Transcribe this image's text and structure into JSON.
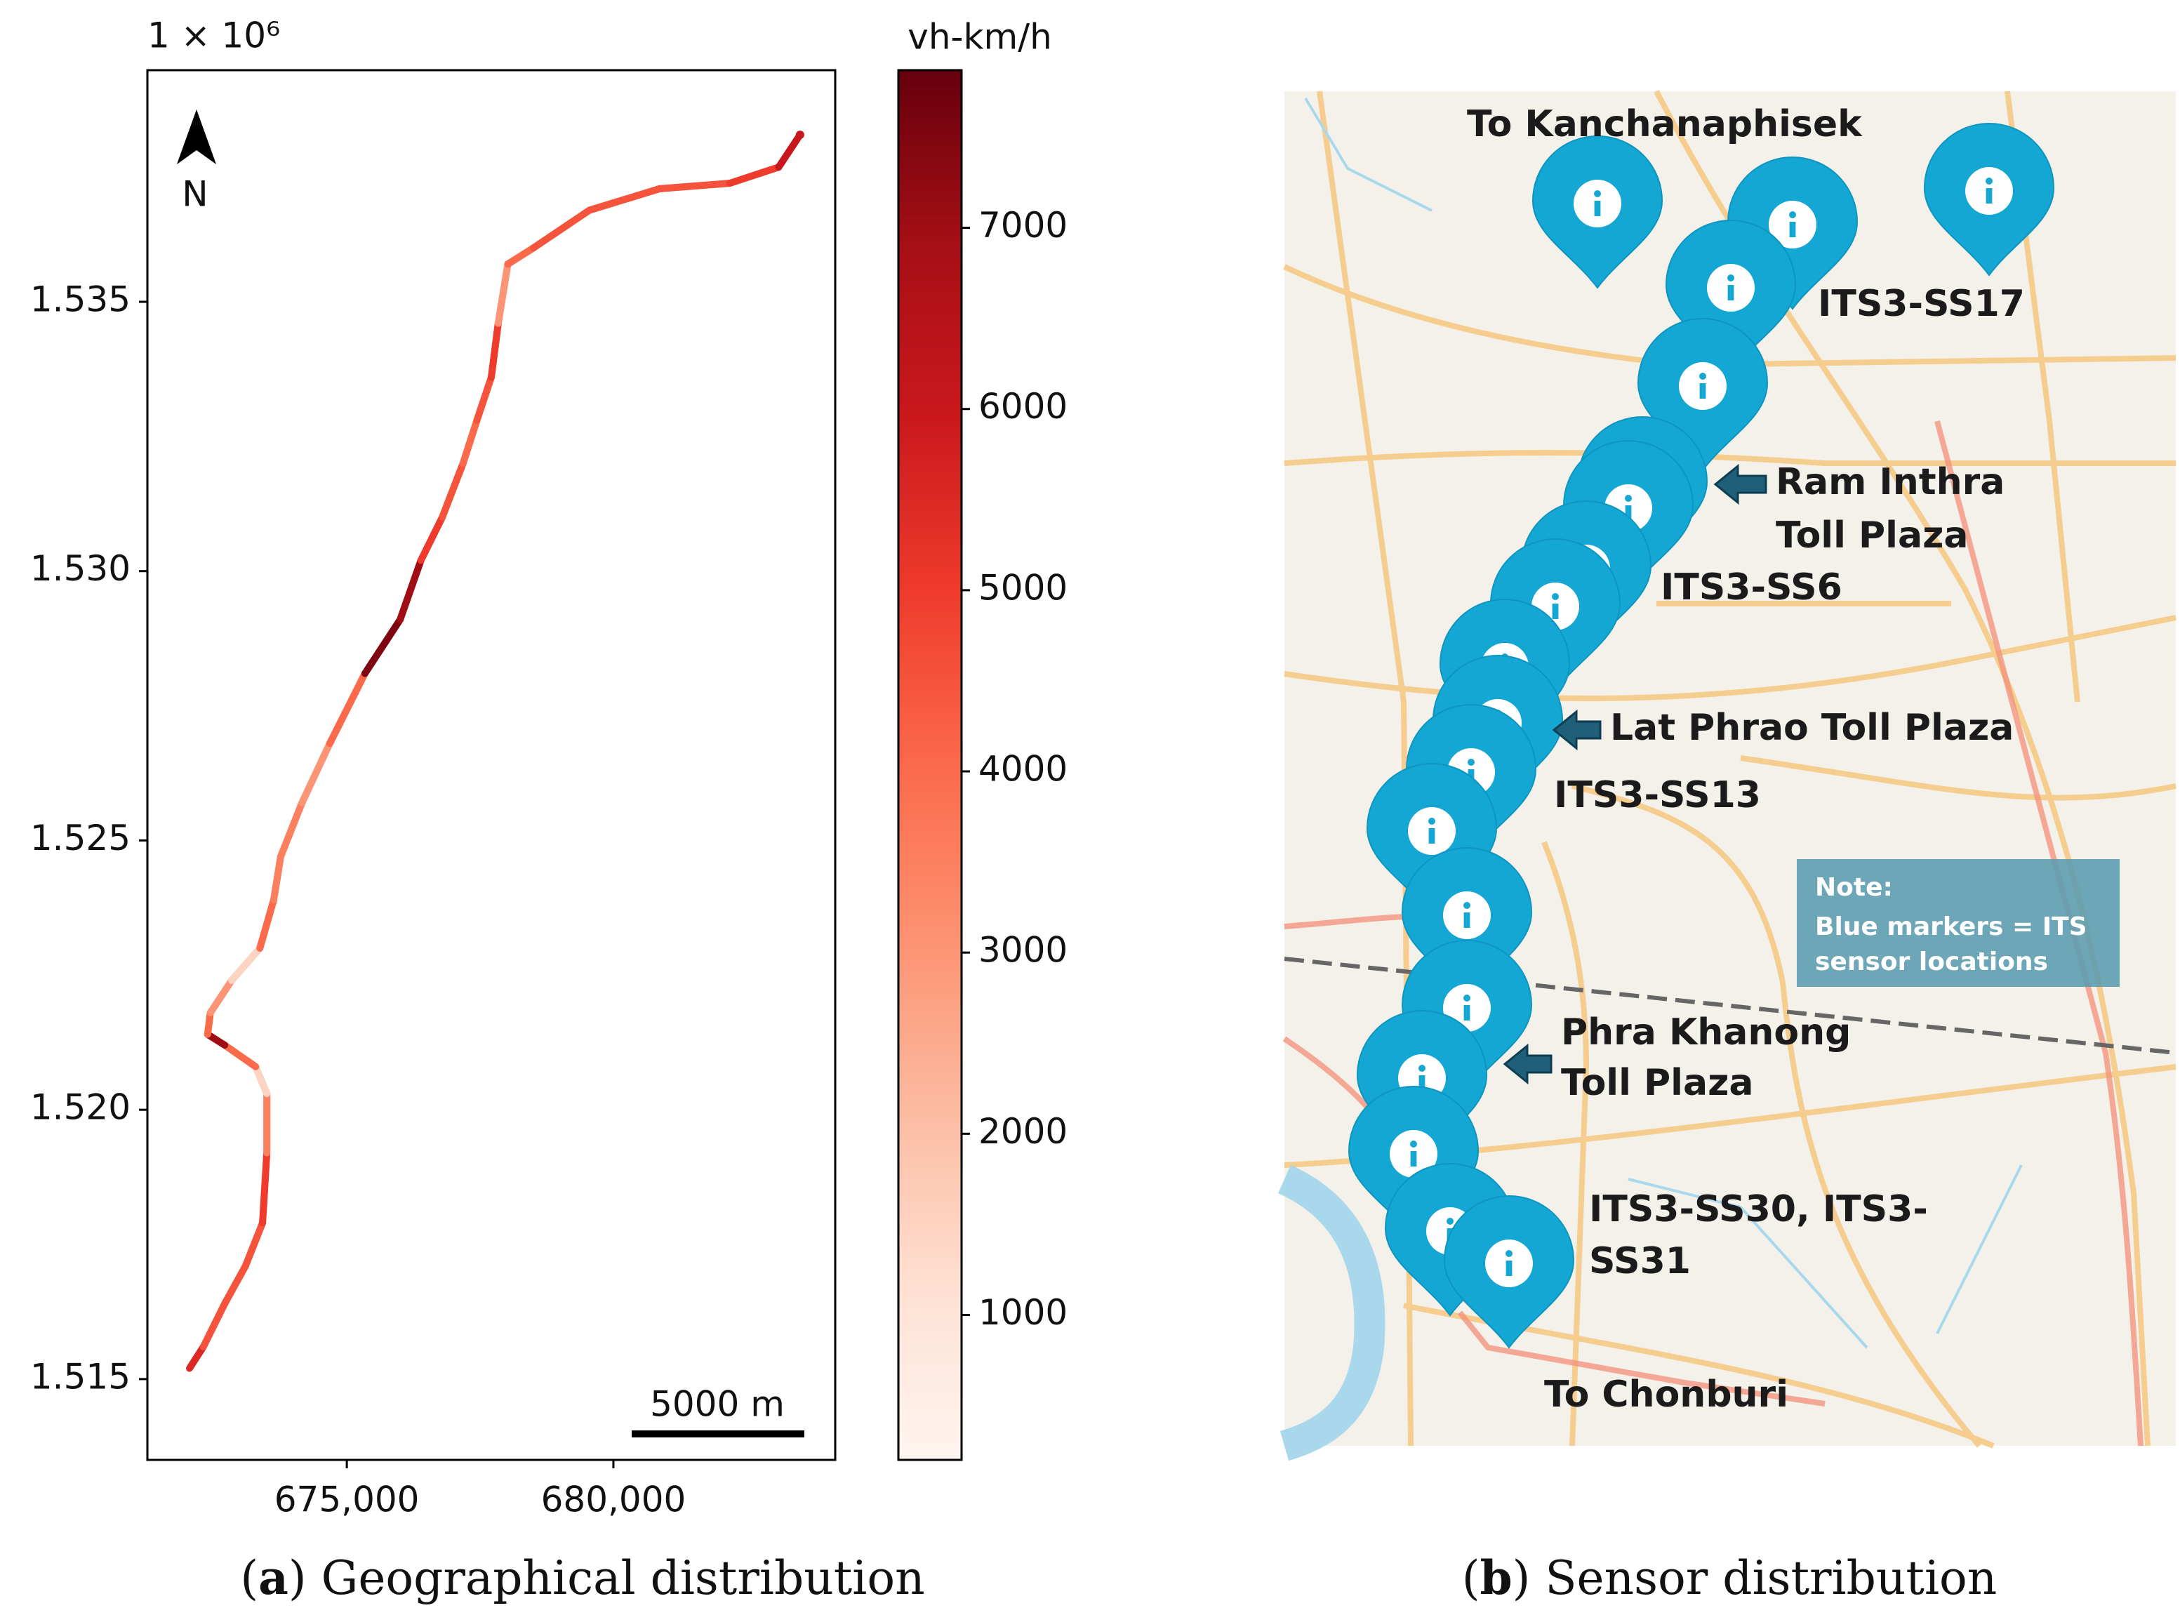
{
  "chart_data": {
    "type": "route",
    "offset_label": "1 × 10⁶",
    "xlim": [
      671260,
      684160
    ],
    "xticks": [
      {
        "value": 675000,
        "label": "675,000"
      },
      {
        "value": 680000,
        "label": "680,000"
      }
    ],
    "ylim": [
      1.5135,
      1.5393
    ],
    "yticks": [
      {
        "value": 1.515,
        "label": "1.515"
      },
      {
        "value": 1.52,
        "label": "1.520"
      },
      {
        "value": 1.525,
        "label": "1.525"
      },
      {
        "value": 1.53,
        "label": "1.530"
      },
      {
        "value": 1.535,
        "label": "1.535"
      }
    ],
    "x": [
      672050,
      672310,
      672710,
      673100,
      673420,
      673500,
      673500,
      673290,
      672710,
      672390,
      672440,
      672840,
      673370,
      673630,
      673760,
      674160,
      674680,
      675340,
      676000,
      676390,
      676790,
      677180,
      677440,
      677710,
      677840,
      678020,
      678500,
      679550,
      680870,
      682180,
      683100,
      683500
    ],
    "y": [
      1.5152,
      1.5156,
      1.5164,
      1.5171,
      1.5179,
      1.5192,
      1.5203,
      1.5208,
      1.5212,
      1.5214,
      1.5218,
      1.5224,
      1.523,
      1.5239,
      1.5247,
      1.5257,
      1.5268,
      1.5281,
      1.5291,
      1.5302,
      1.531,
      1.532,
      1.5328,
      1.5336,
      1.5346,
      1.5357,
      1.536,
      1.5367,
      1.5371,
      1.5372,
      1.5375,
      1.5381
    ],
    "values": [
      5500,
      4500,
      4500,
      4500,
      5000,
      3500,
      1500,
      4000,
      7000,
      4000,
      3000,
      1500,
      4000,
      3500,
      3500,
      3000,
      4000,
      7500,
      7000,
      5000,
      4500,
      4000,
      4500,
      5000,
      3000,
      4000,
      4500,
      4500,
      4500,
      5000,
      6000,
      6000
    ],
    "colorbar_title": "vh-km/h",
    "clim": [
      200,
      7870
    ],
    "cticks": [
      1000,
      2000,
      3000,
      4000,
      5000,
      6000,
      7000
    ],
    "colormap": [
      "#fff5f0",
      "#fee0d2",
      "#fcbba1",
      "#fc9272",
      "#fb6a4a",
      "#ef3b2c",
      "#cb181d",
      "#a50f15",
      "#67000d"
    ],
    "north_label": "N",
    "scale_bar_label": "5000 m"
  },
  "captions": [
    [
      "(",
      "a",
      ") Geographical distribution"
    ],
    [
      "(",
      "b",
      ") Sensor distribution"
    ]
  ],
  "map_panel": {
    "labels": [
      "To Kanchanaphisek",
      "ITS3-SS17",
      "Ram Inthra",
      "Toll Plaza",
      "ITS3-SS6",
      "Lat Phrao Toll Plaza",
      "ITS3-SS13",
      "Phra Khanong",
      "Toll Plaza",
      "ITS3-SS30, ITS3-",
      "SS31",
      "To Chonburi"
    ],
    "note": [
      "Note:",
      "Blue markers = ITS",
      "sensor locations"
    ]
  }
}
